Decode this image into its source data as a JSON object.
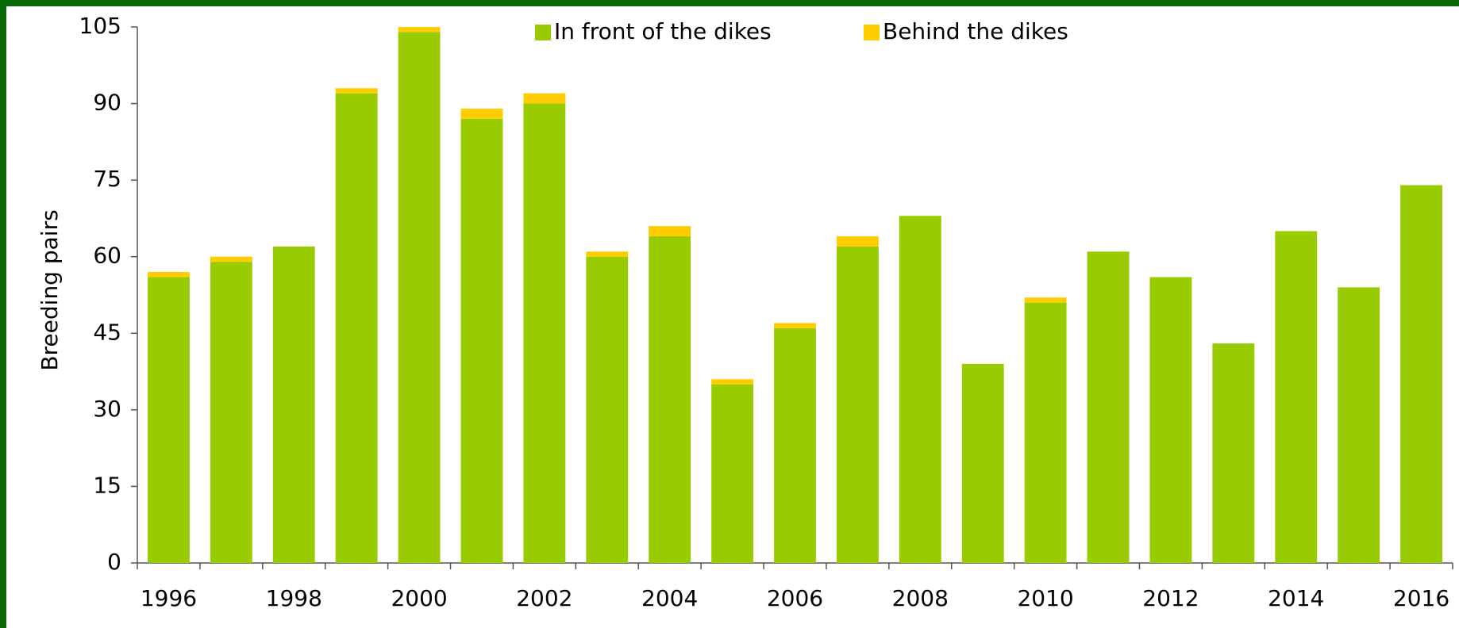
{
  "chart_data": {
    "type": "stacked-bar",
    "y_label": "Breeding pairs",
    "categories": [
      "1996",
      null,
      "1998",
      null,
      "2000",
      null,
      "2002",
      null,
      "2004",
      null,
      "2006",
      null,
      "2008",
      null,
      "2010",
      null,
      "2012",
      null,
      "2014",
      null,
      "2016"
    ],
    "series": [
      {
        "name": "In front of the dikes",
        "color": "#99cc00",
        "values": [
          56,
          59,
          62,
          92,
          104,
          87,
          90,
          60,
          64,
          35,
          46,
          62,
          68,
          39,
          51,
          61,
          56,
          43,
          65,
          54,
          74
        ]
      },
      {
        "name": "Behind the dikes",
        "color": "#ffcc00",
        "values": [
          1,
          1,
          0,
          1,
          1,
          2,
          2,
          1,
          2,
          1,
          1,
          2,
          0,
          0,
          1,
          0,
          0,
          0,
          0,
          0,
          0
        ]
      }
    ],
    "ylim": [
      0,
      105
    ],
    "yticks": [
      0,
      15,
      30,
      45,
      60,
      75,
      90,
      105
    ],
    "stacked": true
  }
}
